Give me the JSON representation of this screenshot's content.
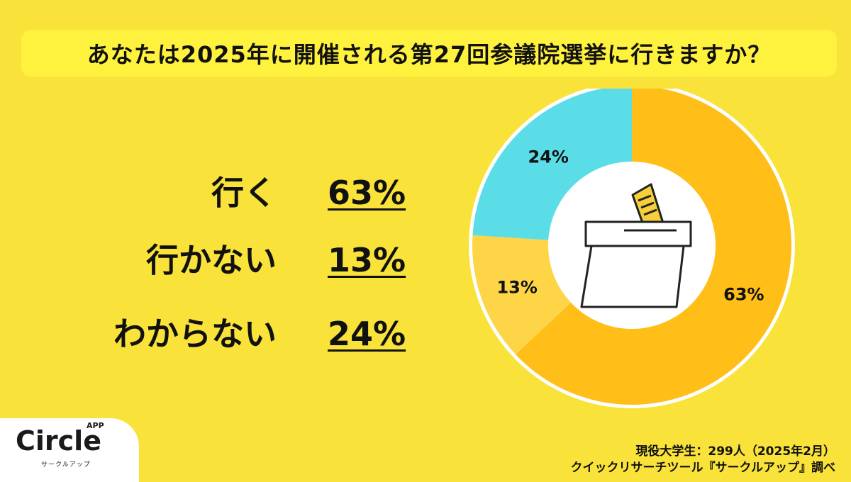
{
  "title": "あなたは2025年に開催される第27回参議院選挙に行きますか？",
  "legend": [
    {
      "label": "行く",
      "value": "63%"
    },
    {
      "label": "行かない",
      "value": "13%"
    },
    {
      "label": "わからない",
      "value": "24%"
    }
  ],
  "chart_data": {
    "type": "pie",
    "categories": [
      "行く",
      "行かない",
      "わからない"
    ],
    "values": [
      63,
      13,
      24
    ],
    "labels": [
      "63%",
      "13%",
      "24%"
    ],
    "colors": [
      "#FFBE18",
      "#FDD547",
      "#5BDDE8"
    ],
    "title": ""
  },
  "footer": {
    "line1": "現役大学生：299人（2025年2月）",
    "line2": "クイックリサーチツール『サークルアップ』調べ"
  },
  "logo": {
    "main": "Circle",
    "app": "APP",
    "sub": "サークルアップ"
  },
  "icon": "ballot-box-icon"
}
